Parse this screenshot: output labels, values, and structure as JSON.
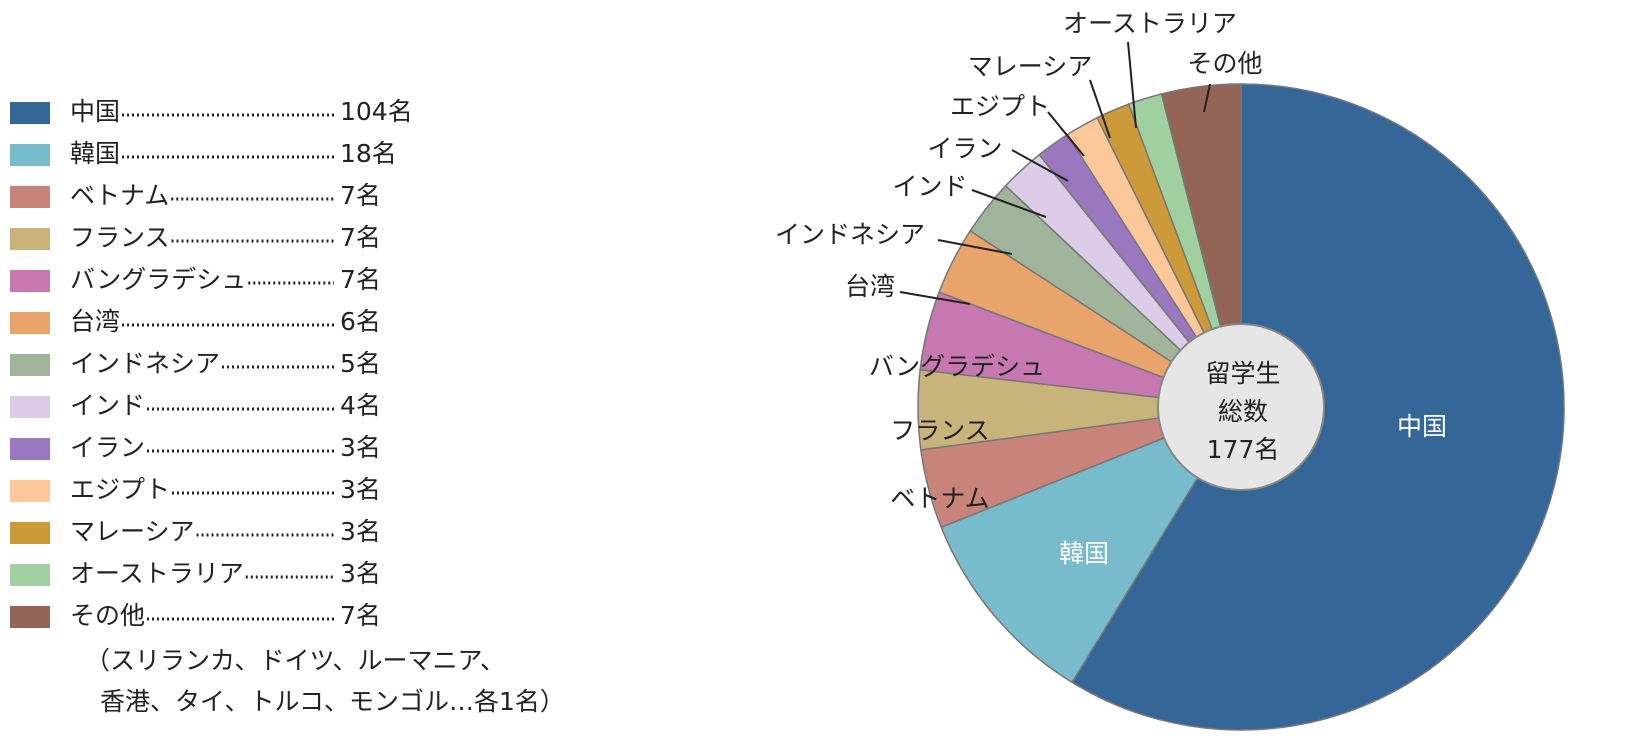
{
  "chart_data": {
    "type": "pie",
    "categories": [
      "中国",
      "韓国",
      "ベトナム",
      "フランス",
      "バングラデシュ",
      "台湾",
      "インドネシア",
      "インド",
      "イラン",
      "エジプト",
      "マレーシア",
      "オーストラリア",
      "その他"
    ],
    "values": [
      104,
      18,
      7,
      7,
      7,
      6,
      5,
      4,
      3,
      3,
      3,
      3,
      7
    ],
    "value_labels": [
      "104名",
      "18名",
      "7名",
      "7名",
      "7名",
      "6名",
      "5名",
      "4名",
      "3名",
      "3名",
      "3名",
      "3名",
      "7名"
    ],
    "colors": [
      "#346698",
      "#77bbcc",
      "#c8847a",
      "#c8b47a",
      "#c878b0",
      "#e8a46a",
      "#9fb49a",
      "#dccce8",
      "#9a78c0",
      "#fcc89a",
      "#cc9a38",
      "#a0d0a0",
      "#946456"
    ],
    "center_label": [
      "留学生",
      "総数",
      "177名"
    ],
    "note": [
      "（スリランカ、ドイツ、ルーマニア、",
      "香港、タイ、トルコ、モンゴル…各1名）"
    ]
  }
}
